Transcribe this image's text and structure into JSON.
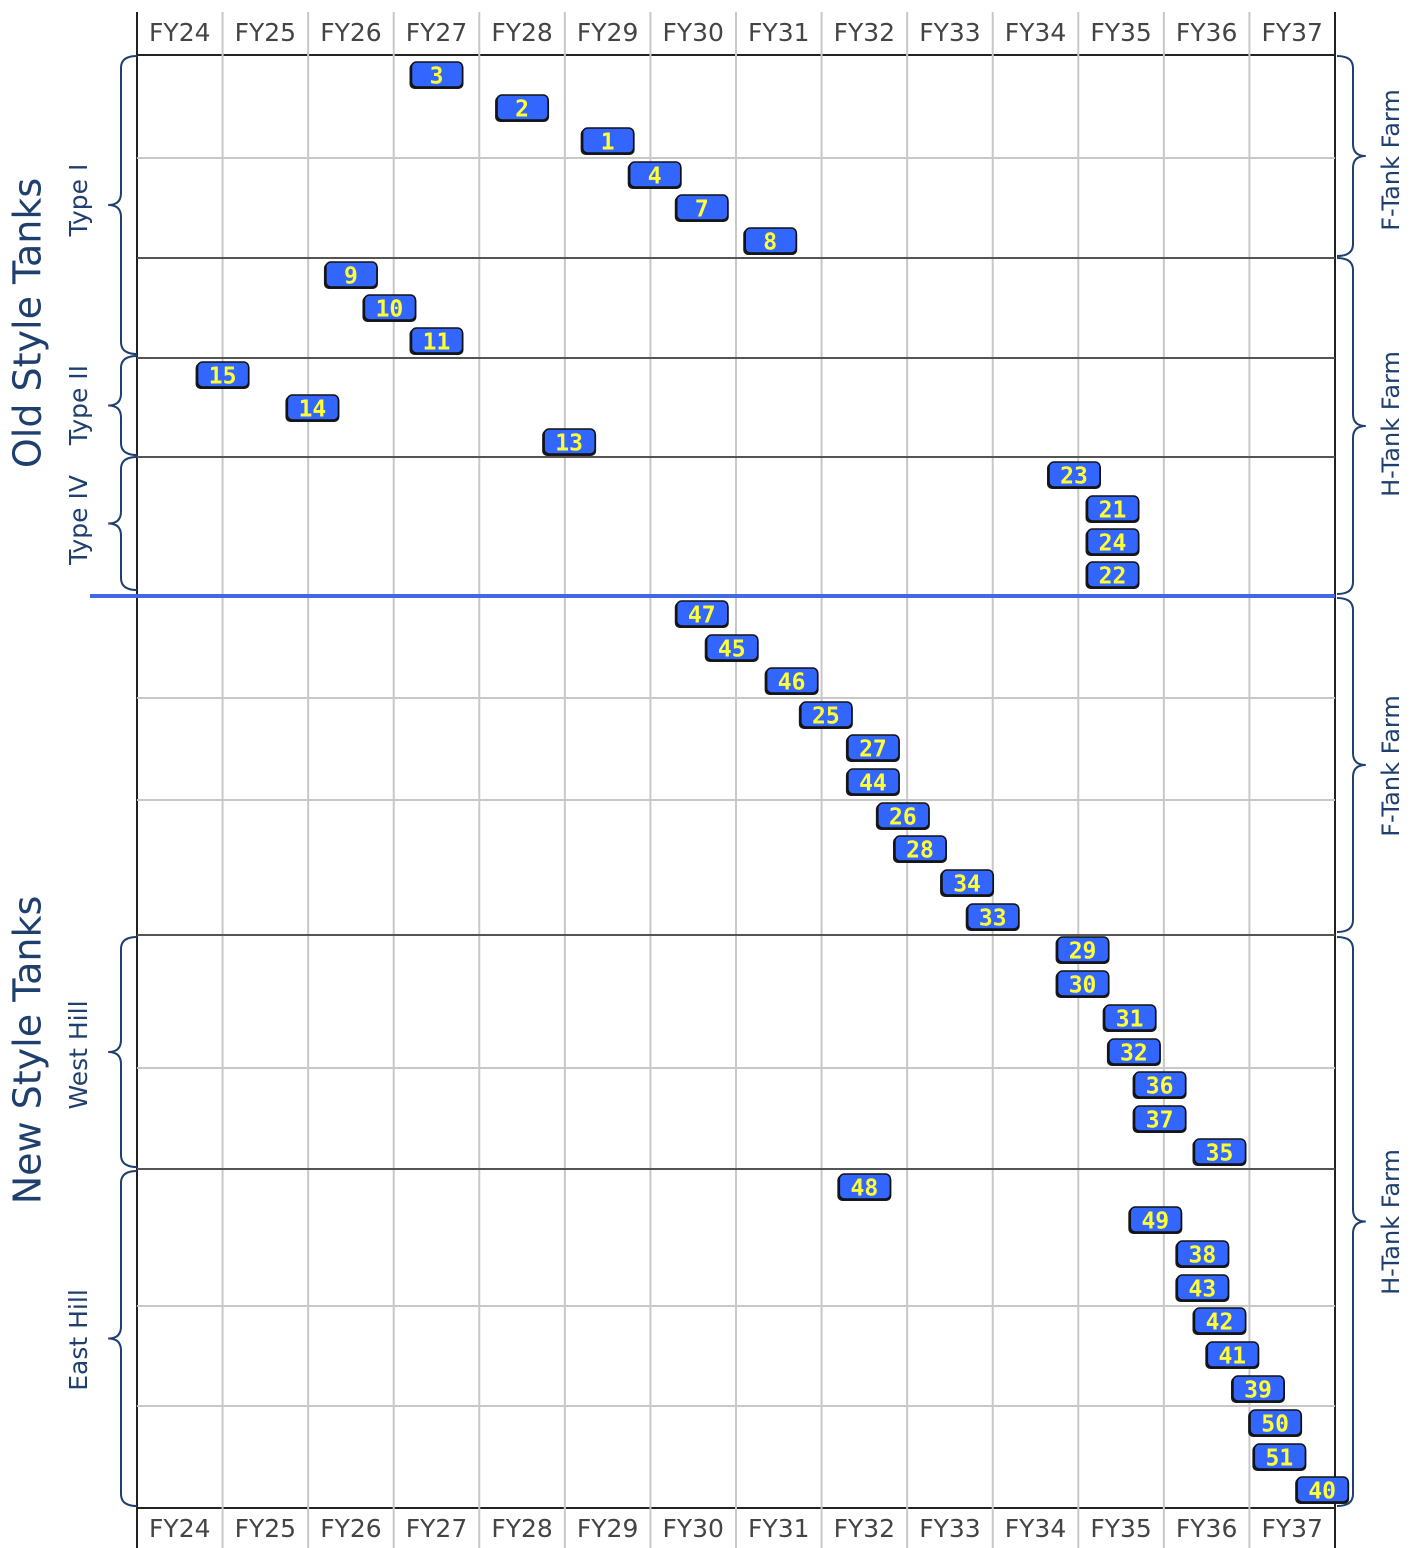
{
  "chart_data": {
    "type": "scatter",
    "title": "",
    "x_categories": [
      "FY24",
      "FY25",
      "FY26",
      "FY27",
      "FY28",
      "FY29",
      "FY30",
      "FY31",
      "FY32",
      "FY33",
      "FY34",
      "FY35",
      "FY36",
      "FY37"
    ],
    "groups": [
      {
        "name": "Old Style Tanks",
        "subgroups": [
          {
            "name": "Type I",
            "farm": "F-Tank Farm"
          },
          {
            "name": "Type II",
            "farm": "H-Tank Farm"
          },
          {
            "name": "Type IV",
            "farm": "H-Tank Farm"
          }
        ]
      },
      {
        "name": "New Style Tanks",
        "subgroups": [
          {
            "name": "",
            "farm": "F-Tank Farm"
          },
          {
            "name": "West Hill",
            "farm": "H-Tank Farm"
          },
          {
            "name": "East Hill",
            "farm": "H-Tank Farm"
          }
        ]
      }
    ],
    "tanks": [
      {
        "tank": "3",
        "fy": 27.0
      },
      {
        "tank": "2",
        "fy": 28.0
      },
      {
        "tank": "1",
        "fy": 29.0
      },
      {
        "tank": "4",
        "fy": 29.55
      },
      {
        "tank": "7",
        "fy": 30.1
      },
      {
        "tank": "8",
        "fy": 30.9
      },
      {
        "tank": "9",
        "fy": 26.0
      },
      {
        "tank": "10",
        "fy": 26.45
      },
      {
        "tank": "11",
        "fy": 27.0
      },
      {
        "tank": "15",
        "fy": 24.5
      },
      {
        "tank": "14",
        "fy": 25.55
      },
      {
        "tank": "13",
        "fy": 28.55
      },
      {
        "tank": "23",
        "fy": 34.45
      },
      {
        "tank": "21",
        "fy": 34.9
      },
      {
        "tank": "24",
        "fy": 34.9
      },
      {
        "tank": "22",
        "fy": 34.9
      },
      {
        "tank": "47",
        "fy": 30.1
      },
      {
        "tank": "45",
        "fy": 30.45
      },
      {
        "tank": "46",
        "fy": 31.15
      },
      {
        "tank": "25",
        "fy": 31.55
      },
      {
        "tank": "27",
        "fy": 32.1
      },
      {
        "tank": "44",
        "fy": 32.1
      },
      {
        "tank": "26",
        "fy": 32.45
      },
      {
        "tank": "28",
        "fy": 32.65
      },
      {
        "tank": "34",
        "fy": 33.2
      },
      {
        "tank": "33",
        "fy": 33.5
      },
      {
        "tank": "29",
        "fy": 34.55
      },
      {
        "tank": "30",
        "fy": 34.55
      },
      {
        "tank": "31",
        "fy": 35.1
      },
      {
        "tank": "32",
        "fy": 35.15
      },
      {
        "tank": "36",
        "fy": 35.45
      },
      {
        "tank": "37",
        "fy": 35.45
      },
      {
        "tank": "35",
        "fy": 36.15
      },
      {
        "tank": "48",
        "fy": 32.0
      },
      {
        "tank": "49",
        "fy": 35.4
      },
      {
        "tank": "38",
        "fy": 35.95
      },
      {
        "tank": "43",
        "fy": 35.95
      },
      {
        "tank": "42",
        "fy": 36.15
      },
      {
        "tank": "41",
        "fy": 36.3
      },
      {
        "tank": "39",
        "fy": 36.6
      },
      {
        "tank": "50",
        "fy": 36.8
      },
      {
        "tank": "51",
        "fy": 36.85
      },
      {
        "tank": "40",
        "fy": 37.35
      }
    ]
  },
  "colors": {
    "marker_fill": "#3366ff",
    "marker_text": "#ffff33",
    "divider": "#4169e1",
    "label": "#1f3f6e"
  }
}
